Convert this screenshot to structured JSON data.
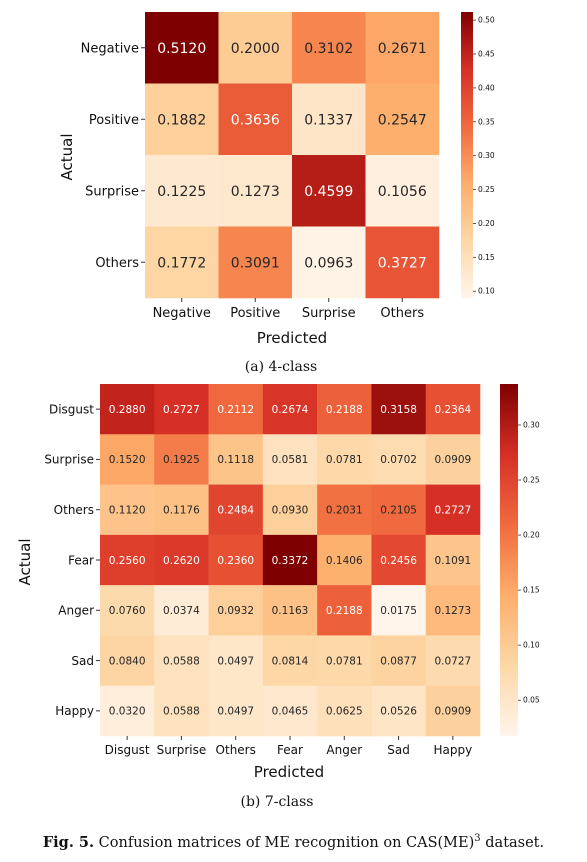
{
  "chart_data": [
    {
      "type": "heatmap",
      "caption": "(a) 4-class",
      "x_categories": [
        "Negative",
        "Positive",
        "Surprise",
        "Others"
      ],
      "y_categories": [
        "Negative",
        "Positive",
        "Surprise",
        "Others"
      ],
      "values": [
        [
          0.512,
          0.2,
          0.3102,
          0.2671
        ],
        [
          0.1882,
          0.3636,
          0.1337,
          0.2547
        ],
        [
          0.1225,
          0.1273,
          0.4599,
          0.1056
        ],
        [
          0.1772,
          0.3091,
          0.0963,
          0.3727
        ]
      ],
      "value_labels": [
        [
          "0.5120",
          "0.2000",
          "0.3102",
          "0.2671"
        ],
        [
          "0.1882",
          "0.3636",
          "0.1337",
          "0.2547"
        ],
        [
          "0.1225",
          "0.1273",
          "0.4599",
          "0.1056"
        ],
        [
          "0.1772",
          "0.3091",
          "0.0963",
          "0.3727"
        ]
      ],
      "xlabel": "Predicted",
      "ylabel": "Actual",
      "colormap": "OrRd",
      "color_range": [
        0.09,
        0.512
      ],
      "colorbar_ticks": [
        0.1,
        0.15,
        0.2,
        0.25,
        0.3,
        0.35,
        0.4,
        0.45,
        0.5
      ],
      "colorbar_tick_labels": [
        "0.10",
        "0.15",
        "0.20",
        "0.25",
        "0.30",
        "0.35",
        "0.40",
        "0.45",
        "0.50"
      ]
    },
    {
      "type": "heatmap",
      "caption": "(b) 7-class",
      "x_categories": [
        "Disgust",
        "Surprise",
        "Others",
        "Fear",
        "Anger",
        "Sad",
        "Happy"
      ],
      "y_categories": [
        "Disgust",
        "Surprise",
        "Others",
        "Fear",
        "Anger",
        "Sad",
        "Happy"
      ],
      "values": [
        [
          0.288,
          0.2727,
          0.2112,
          0.2674,
          0.2188,
          0.3158,
          0.2364
        ],
        [
          0.152,
          0.1925,
          0.1118,
          0.0581,
          0.0781,
          0.0702,
          0.0909
        ],
        [
          0.112,
          0.1176,
          0.2484,
          0.093,
          0.2031,
          0.2105,
          0.2727
        ],
        [
          0.256,
          0.262,
          0.236,
          0.3372,
          0.1406,
          0.2456,
          0.1091
        ],
        [
          0.076,
          0.0374,
          0.0932,
          0.1163,
          0.2188,
          0.0175,
          0.1273
        ],
        [
          0.084,
          0.0588,
          0.0497,
          0.0814,
          0.0781,
          0.0877,
          0.0727
        ],
        [
          0.032,
          0.0588,
          0.0497,
          0.0465,
          0.0625,
          0.0526,
          0.0909
        ]
      ],
      "value_labels": [
        [
          "0.2880",
          "0.2727",
          "0.2112",
          "0.2674",
          "0.2188",
          "0.3158",
          "0.2364"
        ],
        [
          "0.1520",
          "0.1925",
          "0.1118",
          "0.0581",
          "0.0781",
          "0.0702",
          "0.0909"
        ],
        [
          "0.1120",
          "0.1176",
          "0.2484",
          "0.0930",
          "0.2031",
          "0.2105",
          "0.2727"
        ],
        [
          "0.2560",
          "0.2620",
          "0.2360",
          "0.3372",
          "0.1406",
          "0.2456",
          "0.1091"
        ],
        [
          "0.0760",
          "0.0374",
          "0.0932",
          "0.1163",
          "0.2188",
          "0.0175",
          "0.1273"
        ],
        [
          "0.0840",
          "0.0588",
          "0.0497",
          "0.0814",
          "0.0781",
          "0.0877",
          "0.0727"
        ],
        [
          "0.0320",
          "0.0588",
          "0.0497",
          "0.0465",
          "0.0625",
          "0.0526",
          "0.0909"
        ]
      ],
      "xlabel": "Predicted",
      "ylabel": "Actual",
      "colormap": "OrRd",
      "color_range": [
        0.0175,
        0.3372
      ],
      "colorbar_ticks": [
        0.05,
        0.1,
        0.15,
        0.2,
        0.25,
        0.3
      ],
      "colorbar_tick_labels": [
        "0.05",
        "0.10",
        "0.15",
        "0.20",
        "0.25",
        "0.30"
      ]
    }
  ],
  "figure_caption": {
    "label": "Fig. 5.",
    "text": "Confusion matrices of ME recognition on CAS(ME)",
    "superscript": "3",
    "tail": " dataset."
  }
}
